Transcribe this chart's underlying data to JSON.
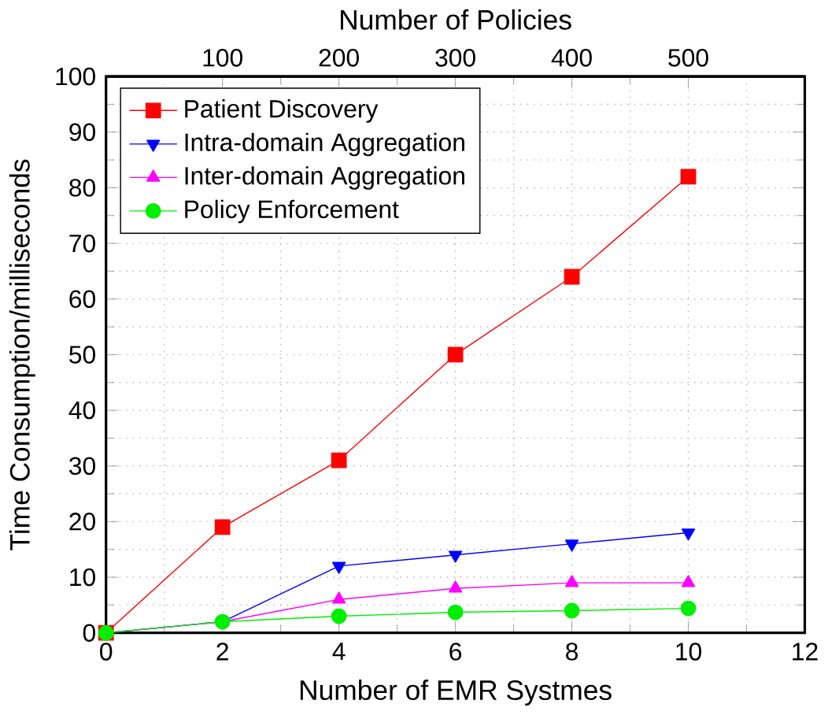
{
  "chart_data": {
    "type": "line",
    "xlabel": "Number of EMR Systmes",
    "ylabel": "Time Consumption/milliseconds",
    "x2label": "Number of Policies",
    "x": [
      0,
      2,
      4,
      6,
      8,
      10
    ],
    "series": [
      {
        "name": "Patient Discovery",
        "color": "#ff0000",
        "marker": "square",
        "values": [
          0,
          19,
          31,
          50,
          64,
          82
        ]
      },
      {
        "name": "Intra-domain Aggregation",
        "color": "#0000ff",
        "marker": "triangle-down",
        "values": [
          0,
          2,
          12,
          14,
          16,
          18
        ]
      },
      {
        "name": "Inter-domain Aggregation",
        "color": "#ff00ff",
        "marker": "triangle",
        "values": [
          0,
          2,
          6,
          8,
          9,
          9
        ]
      },
      {
        "name": "Policy Enforcement",
        "color": "#00ee00",
        "marker": "circle",
        "values": [
          0,
          2,
          3,
          3.7,
          4,
          4.4
        ]
      }
    ],
    "xlim": [
      0,
      12
    ],
    "xticks": [
      0,
      2,
      4,
      6,
      8,
      10,
      12
    ],
    "ylim": [
      0,
      100
    ],
    "yticks": [
      0,
      10,
      20,
      30,
      40,
      50,
      60,
      70,
      80,
      90,
      100
    ],
    "x2lim": [
      0,
      600
    ],
    "x2ticks": [
      100,
      200,
      300,
      400,
      500
    ],
    "grid": true,
    "legend": "top left",
    "line_style": "solid"
  }
}
